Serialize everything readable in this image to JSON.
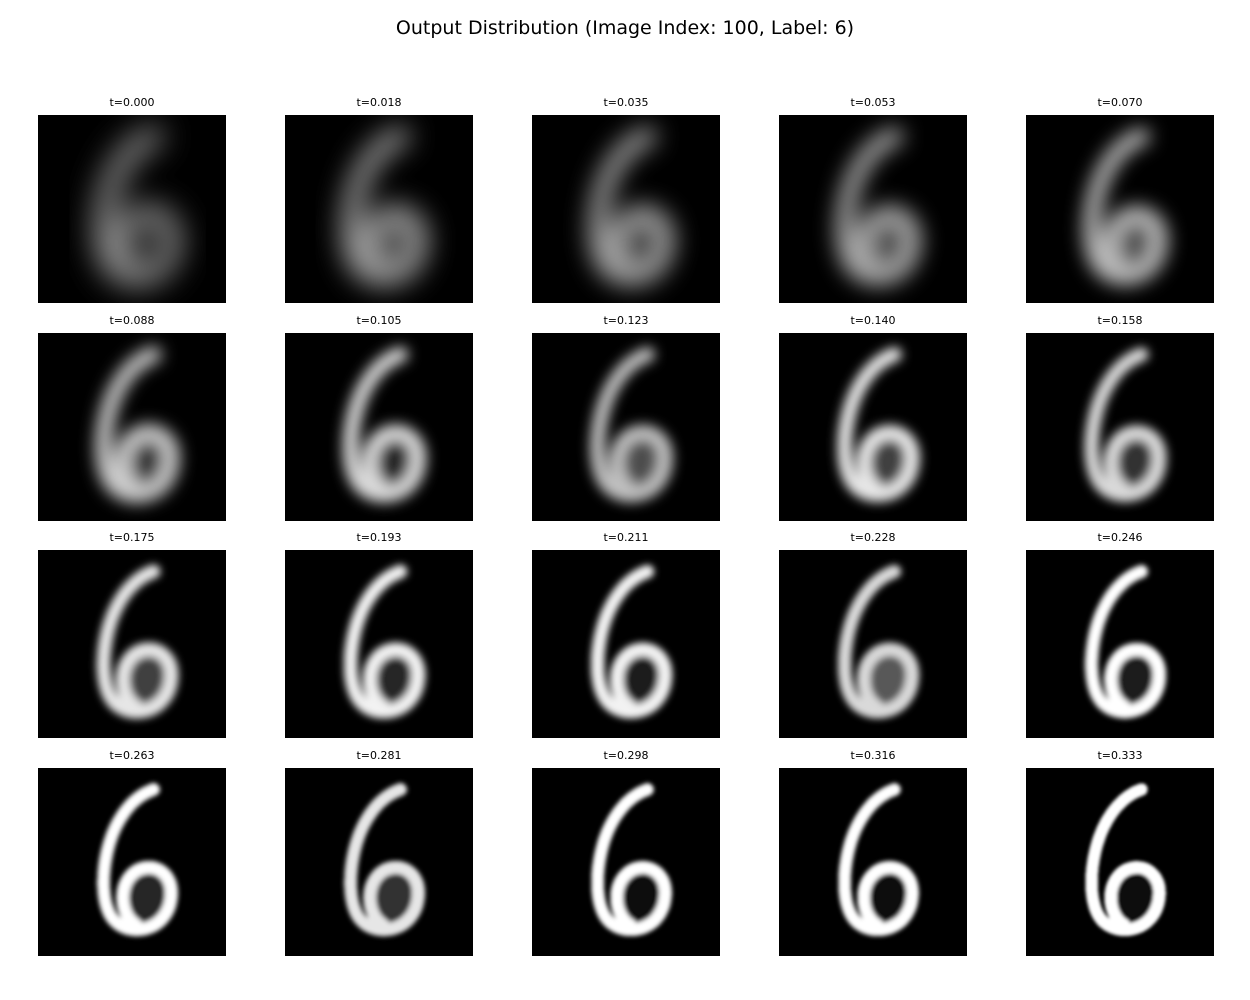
{
  "figure": {
    "title": "Output Distribution (Image Index: 100, Label: 6)"
  },
  "panels": [
    {
      "title": "t=0.000",
      "blur": 2.2,
      "brightness": 0.55,
      "fill": 0.0
    },
    {
      "title": "t=0.018",
      "blur": 2.0,
      "brightness": 0.6,
      "fill": 0.05
    },
    {
      "title": "t=0.035",
      "blur": 1.8,
      "brightness": 0.62,
      "fill": 0.1
    },
    {
      "title": "t=0.053",
      "blur": 1.6,
      "brightness": 0.65,
      "fill": 0.25
    },
    {
      "title": "t=0.070",
      "blur": 1.4,
      "brightness": 0.72,
      "fill": 0.3
    },
    {
      "title": "t=0.088",
      "blur": 1.2,
      "brightness": 0.8,
      "fill": 0.2
    },
    {
      "title": "t=0.105",
      "blur": 1.0,
      "brightness": 0.85,
      "fill": 0.15
    },
    {
      "title": "t=0.123",
      "blur": 0.9,
      "brightness": 0.75,
      "fill": 0.3
    },
    {
      "title": "t=0.140",
      "blur": 0.8,
      "brightness": 0.9,
      "fill": 0.25
    },
    {
      "title": "t=0.158",
      "blur": 0.7,
      "brightness": 0.85,
      "fill": 0.2
    },
    {
      "title": "t=0.175",
      "blur": 0.6,
      "brightness": 0.9,
      "fill": 0.25
    },
    {
      "title": "t=0.193",
      "blur": 0.55,
      "brightness": 0.95,
      "fill": 0.15
    },
    {
      "title": "t=0.211",
      "blur": 0.5,
      "brightness": 0.95,
      "fill": 0.1
    },
    {
      "title": "t=0.228",
      "blur": 0.5,
      "brightness": 0.85,
      "fill": 0.35
    },
    {
      "title": "t=0.246",
      "blur": 0.4,
      "brightness": 1.0,
      "fill": 0.1
    },
    {
      "title": "t=0.263",
      "blur": 0.35,
      "brightness": 1.0,
      "fill": 0.15
    },
    {
      "title": "t=0.281",
      "blur": 0.35,
      "brightness": 0.9,
      "fill": 0.2
    },
    {
      "title": "t=0.298",
      "blur": 0.3,
      "brightness": 1.0,
      "fill": 0.05
    },
    {
      "title": "t=0.316",
      "blur": 0.3,
      "brightness": 1.0,
      "fill": 0.05
    },
    {
      "title": "t=0.333",
      "blur": 0.25,
      "brightness": 1.0,
      "fill": 0.05
    }
  ]
}
